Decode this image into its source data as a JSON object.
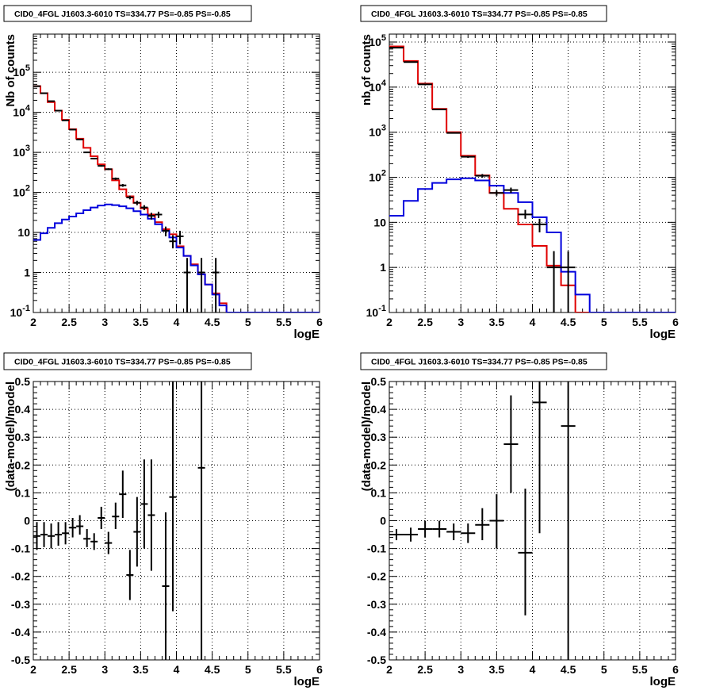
{
  "chart_data": [
    {
      "type": "line",
      "panel": "top-left",
      "title": "CID0_4FGL J1603.3-6010 TS=334.77 PS=-0.85 PS=-0.85",
      "xlabel": "logE",
      "ylabel": "Nb of counts",
      "xlim": [
        2,
        6
      ],
      "ylim": [
        0.1,
        900000
      ],
      "yscale": "log",
      "grid": true,
      "x_ticks": [
        "2",
        "2.5",
        "3",
        "3.5",
        "4",
        "4.5",
        "5",
        "5.5",
        "6"
      ],
      "y_ticks": [
        "10^{-1}",
        "1",
        "10",
        "10^{2}",
        "10^{3}",
        "10^{4}",
        "10^{5}"
      ],
      "bin_edges": [
        2.0,
        2.1,
        2.2,
        2.3,
        2.4,
        2.5,
        2.6,
        2.7,
        2.8,
        2.9,
        3.0,
        3.1,
        3.2,
        3.3,
        3.4,
        3.5,
        3.6,
        3.7,
        3.8,
        3.9,
        4.0,
        4.1,
        4.2,
        4.3,
        4.4,
        4.5,
        4.6,
        4.7,
        4.8,
        4.9,
        5.0,
        5.1,
        5.2,
        5.3,
        5.4,
        5.5,
        5.6,
        5.7,
        5.8,
        5.9,
        6.0
      ],
      "series": [
        {
          "color": "#e00000",
          "style": "step",
          "values": [
            45000,
            30000,
            18000,
            11000,
            6500,
            3800,
            2200,
            1300,
            800,
            500,
            380,
            200,
            120,
            80,
            55,
            40,
            28,
            18,
            12,
            9,
            4.5,
            2.6,
            1.6,
            0.9,
            0.5,
            0.3,
            0.17,
            0.1,
            0.1,
            0.1,
            0.1,
            0.1,
            0.1,
            0.1,
            0.1,
            0.1,
            0.1,
            0.1,
            0.1,
            0.1
          ]
        },
        {
          "color": "#0000dd",
          "style": "step",
          "values": [
            6.5,
            9.5,
            13,
            17,
            21,
            25,
            30,
            36,
            42,
            47,
            50,
            48,
            45,
            40,
            34,
            28,
            22,
            16,
            11,
            7.5,
            4.2,
            2.6,
            1.5,
            0.9,
            0.5,
            0.28,
            0.15,
            0.1,
            0.1,
            0.1,
            0.1,
            0.1,
            0.1,
            0.1,
            0.1,
            0.1,
            0.1,
            0.1,
            0.1,
            0.1
          ]
        }
      ],
      "points": [
        {
          "x": 2.05,
          "y": 45000,
          "lo": 44000,
          "hi": 46000
        },
        {
          "x": 2.15,
          "y": 30000,
          "lo": 29500,
          "hi": 30500
        },
        {
          "x": 2.25,
          "y": 19000,
          "lo": 18500,
          "hi": 19500
        },
        {
          "x": 2.35,
          "y": 11000,
          "lo": 10700,
          "hi": 11300
        },
        {
          "x": 2.45,
          "y": 6300,
          "lo": 6100,
          "hi": 6500
        },
        {
          "x": 2.55,
          "y": 3700,
          "lo": 3600,
          "hi": 3800
        },
        {
          "x": 2.65,
          "y": 2100,
          "lo": 2050,
          "hi": 2150
        },
        {
          "x": 2.75,
          "y": 1000,
          "lo": 970,
          "hi": 1030
        },
        {
          "x": 2.85,
          "y": 700,
          "lo": 670,
          "hi": 730
        },
        {
          "x": 2.95,
          "y": 460,
          "lo": 440,
          "hi": 480
        },
        {
          "x": 3.05,
          "y": 380,
          "lo": 360,
          "hi": 400
        },
        {
          "x": 3.15,
          "y": 220,
          "lo": 205,
          "hi": 235
        },
        {
          "x": 3.25,
          "y": 150,
          "lo": 138,
          "hi": 162
        },
        {
          "x": 3.35,
          "y": 75,
          "lo": 67,
          "hi": 83
        },
        {
          "x": 3.45,
          "y": 55,
          "lo": 48,
          "hi": 62
        },
        {
          "x": 3.55,
          "y": 42,
          "lo": 36,
          "hi": 48
        },
        {
          "x": 3.65,
          "y": 26,
          "lo": 21,
          "hi": 31
        },
        {
          "x": 3.75,
          "y": 28,
          "lo": 23,
          "hi": 33
        },
        {
          "x": 3.85,
          "y": 11,
          "lo": 8,
          "hi": 14
        },
        {
          "x": 3.95,
          "y": 6,
          "lo": 4,
          "hi": 8.5
        },
        {
          "x": 4.05,
          "y": 8,
          "lo": 5,
          "hi": 11
        },
        {
          "x": 4.15,
          "y": 1,
          "lo": 0.1,
          "hi": 2.3
        },
        {
          "x": 4.35,
          "y": 1,
          "lo": 0.1,
          "hi": 2.3
        },
        {
          "x": 4.55,
          "y": 1,
          "lo": 0.1,
          "hi": 2.3
        }
      ]
    },
    {
      "type": "line",
      "panel": "top-right",
      "title": "CID0_4FGL J1603.3-6010 TS=334.77 PS=-0.85 PS=-0.85",
      "xlabel": "logE",
      "ylabel": "nb of counts",
      "xlim": [
        2,
        6
      ],
      "ylim": [
        0.1,
        150000
      ],
      "yscale": "log",
      "grid": true,
      "x_ticks": [
        "2",
        "2.5",
        "3",
        "3.5",
        "4",
        "4.5",
        "5",
        "5.5",
        "6"
      ],
      "y_ticks": [
        "10^{-1}",
        "1",
        "10",
        "10^{2}",
        "10^{3}",
        "10^{4}",
        "10^{5}"
      ],
      "bin_edges": [
        2.0,
        2.2,
        2.4,
        2.6,
        2.8,
        3.0,
        3.2,
        3.4,
        3.6,
        3.8,
        4.0,
        4.2,
        4.4,
        4.6,
        4.8,
        5.0,
        5.2,
        5.4,
        5.6,
        5.8,
        6.0
      ],
      "series": [
        {
          "color": "#e00000",
          "style": "step",
          "values": [
            80000,
            38000,
            12000,
            3300,
            1000,
            300,
            110,
            45,
            20,
            9,
            3,
            1.1,
            0.4,
            0.1,
            0.1,
            0.1,
            0.1,
            0.1,
            0.1,
            0.1
          ]
        },
        {
          "color": "#0000dd",
          "style": "step",
          "values": [
            14,
            30,
            55,
            75,
            90,
            95,
            85,
            65,
            45,
            28,
            13,
            6,
            0.8,
            0.25,
            0.1,
            0.1,
            0.1,
            0.1,
            0.1,
            0.1
          ]
        }
      ],
      "points": [
        {
          "x": 2.1,
          "y": 75000,
          "lo": 74000,
          "hi": 76000
        },
        {
          "x": 2.3,
          "y": 36000,
          "lo": 35500,
          "hi": 36500
        },
        {
          "x": 2.5,
          "y": 11500,
          "lo": 11300,
          "hi": 11700
        },
        {
          "x": 2.7,
          "y": 3200,
          "lo": 3100,
          "hi": 3300
        },
        {
          "x": 2.9,
          "y": 960,
          "lo": 930,
          "hi": 990
        },
        {
          "x": 3.1,
          "y": 285,
          "lo": 270,
          "hi": 300
        },
        {
          "x": 3.3,
          "y": 108,
          "lo": 98,
          "hi": 118
        },
        {
          "x": 3.5,
          "y": 45,
          "lo": 39,
          "hi": 51
        },
        {
          "x": 3.7,
          "y": 52,
          "lo": 45,
          "hi": 59
        },
        {
          "x": 3.9,
          "y": 15,
          "lo": 12,
          "hi": 19
        },
        {
          "x": 4.1,
          "y": 9,
          "lo": 6,
          "hi": 12
        },
        {
          "x": 4.3,
          "y": 1,
          "lo": 0.1,
          "hi": 2.3
        },
        {
          "x": 4.5,
          "y": 1,
          "lo": 0.1,
          "hi": 2.3
        }
      ]
    },
    {
      "type": "scatter",
      "panel": "bottom-left",
      "title": "CID0_4FGL J1603.3-6010 TS=334.77 PS=-0.85 PS=-0.85",
      "xlabel": "logE",
      "ylabel": "(data-model)/model",
      "xlim": [
        2,
        6
      ],
      "ylim": [
        -0.5,
        0.5
      ],
      "yscale": "linear",
      "grid": true,
      "x_ticks": [
        "2",
        "2.5",
        "3",
        "3.5",
        "4",
        "4.5",
        "5",
        "5.5",
        "6"
      ],
      "y_ticks": [
        "-0.5",
        "-0.4",
        "-0.3",
        "-0.2",
        "-0.1",
        "0",
        "0.1",
        "0.2",
        "0.3",
        "0.4",
        "0.5"
      ],
      "x_half_width": 0.05,
      "points": [
        {
          "x": 2.05,
          "y": -0.055,
          "lo": -0.105,
          "hi": -0.005
        },
        {
          "x": 2.15,
          "y": -0.05,
          "lo": -0.095,
          "hi": -0.005
        },
        {
          "x": 2.25,
          "y": -0.055,
          "lo": -0.1,
          "hi": -0.01
        },
        {
          "x": 2.35,
          "y": -0.05,
          "lo": -0.09,
          "hi": -0.005
        },
        {
          "x": 2.45,
          "y": -0.045,
          "lo": -0.085,
          "hi": -0.005
        },
        {
          "x": 2.55,
          "y": -0.025,
          "lo": -0.06,
          "hi": 0.01
        },
        {
          "x": 2.65,
          "y": -0.02,
          "lo": -0.05,
          "hi": 0.02
        },
        {
          "x": 2.75,
          "y": -0.065,
          "lo": -0.095,
          "hi": -0.03
        },
        {
          "x": 2.85,
          "y": -0.075,
          "lo": -0.105,
          "hi": -0.045
        },
        {
          "x": 2.95,
          "y": 0.01,
          "lo": -0.03,
          "hi": 0.05
        },
        {
          "x": 3.05,
          "y": -0.08,
          "lo": -0.12,
          "hi": -0.04
        },
        {
          "x": 3.15,
          "y": 0.015,
          "lo": -0.03,
          "hi": 0.065
        },
        {
          "x": 3.25,
          "y": 0.095,
          "lo": 0.01,
          "hi": 0.18
        },
        {
          "x": 3.35,
          "y": -0.195,
          "lo": -0.285,
          "hi": -0.105
        },
        {
          "x": 3.45,
          "y": -0.04,
          "lo": -0.165,
          "hi": 0.085
        },
        {
          "x": 3.55,
          "y": 0.06,
          "lo": -0.1,
          "hi": 0.22
        },
        {
          "x": 3.65,
          "y": 0.02,
          "lo": -0.18,
          "hi": 0.22
        },
        {
          "x": 3.85,
          "y": -0.235,
          "lo": -0.5,
          "hi": 0.03
        },
        {
          "x": 3.95,
          "y": 0.085,
          "lo": -0.325,
          "hi": 0.5
        },
        {
          "x": 4.35,
          "y": 0.19,
          "lo": -0.5,
          "hi": 0.5
        }
      ]
    },
    {
      "type": "scatter",
      "panel": "bottom-right",
      "title": "CID0_4FGL J1603.3-6010 TS=334.77 PS=-0.85 PS=-0.85",
      "xlabel": "logE",
      "ylabel": "(data-model)/model",
      "xlim": [
        2,
        6
      ],
      "ylim": [
        -0.5,
        0.5
      ],
      "yscale": "linear",
      "grid": true,
      "x_ticks": [
        "2",
        "2.5",
        "3",
        "3.5",
        "4",
        "4.5",
        "5",
        "5.5",
        "6"
      ],
      "y_ticks": [
        "-0.5",
        "-0.4",
        "-0.3",
        "-0.2",
        "-0.1",
        "0",
        "0.1",
        "0.2",
        "0.3",
        "0.4",
        "0.5"
      ],
      "x_half_width": 0.1,
      "points": [
        {
          "x": 2.1,
          "y": -0.05,
          "lo": -0.07,
          "hi": -0.03
        },
        {
          "x": 2.3,
          "y": -0.05,
          "lo": -0.075,
          "hi": -0.025
        },
        {
          "x": 2.5,
          "y": -0.03,
          "lo": -0.06,
          "hi": 0.0
        },
        {
          "x": 2.7,
          "y": -0.03,
          "lo": -0.06,
          "hi": 0.0
        },
        {
          "x": 2.9,
          "y": -0.04,
          "lo": -0.07,
          "hi": -0.01
        },
        {
          "x": 3.1,
          "y": -0.045,
          "lo": -0.08,
          "hi": -0.01
        },
        {
          "x": 3.3,
          "y": -0.015,
          "lo": -0.07,
          "hi": 0.045
        },
        {
          "x": 3.5,
          "y": 0.0,
          "lo": -0.1,
          "hi": 0.095
        },
        {
          "x": 3.7,
          "y": 0.275,
          "lo": 0.1,
          "hi": 0.45
        },
        {
          "x": 3.9,
          "y": -0.115,
          "lo": -0.34,
          "hi": 0.115
        },
        {
          "x": 4.1,
          "y": 0.425,
          "lo": -0.045,
          "hi": 0.5
        },
        {
          "x": 4.5,
          "y": 0.34,
          "lo": -0.5,
          "hi": 0.5
        }
      ]
    }
  ]
}
